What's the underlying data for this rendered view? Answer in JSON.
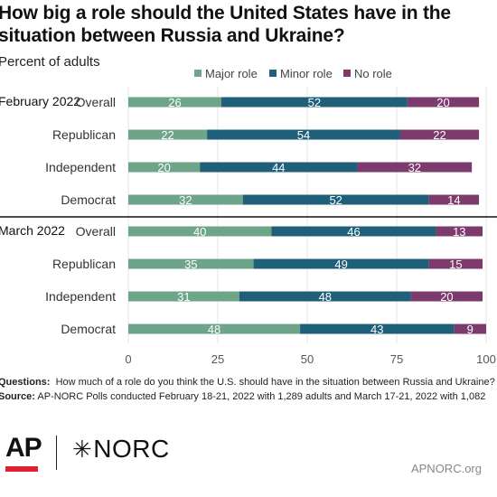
{
  "title": "How big a role should the United States have in the situation between Russia and Ukraine?",
  "subtitle": "Percent of adults",
  "legend": [
    {
      "name": "Major role",
      "color": "#6ea489"
    },
    {
      "name": "Minor role",
      "color": "#1f5f7a"
    },
    {
      "name": "No role",
      "color": "#7c3a6d"
    }
  ],
  "chart_data": {
    "type": "bar",
    "orientation": "horizontal",
    "stacked": true,
    "xlim": [
      0,
      100
    ],
    "xticks": [
      0,
      25,
      50,
      75,
      100
    ],
    "legend_position": "top",
    "groups": [
      {
        "label": "February 2022",
        "rows": [
          {
            "category": "Overall",
            "values": [
              26,
              52,
              20
            ]
          },
          {
            "category": "Republican",
            "values": [
              22,
              54,
              22
            ]
          },
          {
            "category": "Independent",
            "values": [
              20,
              44,
              32
            ]
          },
          {
            "category": "Democrat",
            "values": [
              32,
              52,
              14
            ]
          }
        ]
      },
      {
        "label": "March 2022",
        "rows": [
          {
            "category": "Overall",
            "values": [
              40,
              46,
              13
            ]
          },
          {
            "category": "Republican",
            "values": [
              35,
              49,
              15
            ]
          },
          {
            "category": "Independent",
            "values": [
              31,
              48,
              20
            ]
          },
          {
            "category": "Democrat",
            "values": [
              48,
              43,
              9
            ]
          }
        ]
      }
    ],
    "series": [
      {
        "name": "Major role",
        "color": "#6ea489"
      },
      {
        "name": "Minor role",
        "color": "#1f5f7a"
      },
      {
        "name": "No role",
        "color": "#7c3a6d"
      }
    ]
  },
  "footer": {
    "questions_label": "Questions:",
    "questions_text": "How much of a role do you think the U.S. should have in the situation between Russia and Ukraine?",
    "source_label": "Source:",
    "source_text": "AP-NORC Polls conducted February 18-21, 2022 with 1,289 adults and March 17-21, 2022 with 1,082"
  },
  "logos": {
    "ap": "AP",
    "norc": "NORC",
    "url": "APNORC.org"
  }
}
